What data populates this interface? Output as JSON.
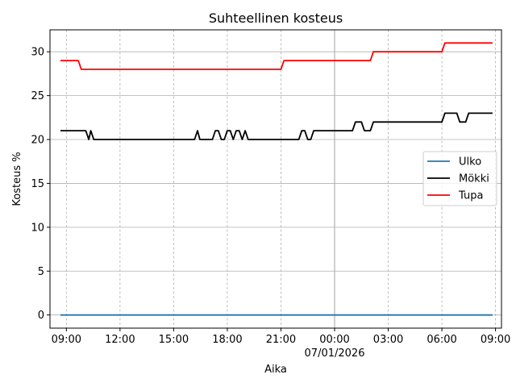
{
  "chart_data": {
    "type": "line",
    "title": "Suhteellinen kosteus",
    "xlabel": "Aika",
    "ylabel": "Kosteus %",
    "ylim": [
      -1.5,
      32.5
    ],
    "xlim": [
      "2026-01-06T08:05",
      "2026-01-07T09:20"
    ],
    "grid": true,
    "x_grid_style": "dashed",
    "legend_position": "center-right",
    "x_ticks": [
      {
        "t": "2026-01-06T09:00",
        "label": "09:00",
        "sublabel": ""
      },
      {
        "t": "2026-01-06T12:00",
        "label": "12:00",
        "sublabel": ""
      },
      {
        "t": "2026-01-06T15:00",
        "label": "15:00",
        "sublabel": ""
      },
      {
        "t": "2026-01-06T18:00",
        "label": "18:00",
        "sublabel": ""
      },
      {
        "t": "2026-01-06T21:00",
        "label": "21:00",
        "sublabel": ""
      },
      {
        "t": "2026-01-07T00:00",
        "label": "00:00",
        "sublabel": "07/01/2026"
      },
      {
        "t": "2026-01-07T03:00",
        "label": "03:00",
        "sublabel": ""
      },
      {
        "t": "2026-01-07T06:00",
        "label": "06:00",
        "sublabel": ""
      },
      {
        "t": "2026-01-07T09:00",
        "label": "09:00",
        "sublabel": ""
      }
    ],
    "y_ticks": [
      0,
      5,
      10,
      15,
      20,
      25,
      30
    ],
    "series": [
      {
        "name": "Ulko",
        "color": "#1f77b4",
        "points": [
          [
            "2026-01-06T08:40",
            0
          ],
          [
            "2026-01-07T08:50",
            0
          ]
        ]
      },
      {
        "name": "Mökki",
        "color": "#000000",
        "points": [
          [
            "2026-01-06T08:40",
            21
          ],
          [
            "2026-01-06T10:05",
            21
          ],
          [
            "2026-01-06T10:15",
            20
          ],
          [
            "2026-01-06T10:22",
            21
          ],
          [
            "2026-01-06T10:32",
            20
          ],
          [
            "2026-01-06T16:10",
            20
          ],
          [
            "2026-01-06T16:20",
            21
          ],
          [
            "2026-01-06T16:28",
            20
          ],
          [
            "2026-01-06T17:10",
            20
          ],
          [
            "2026-01-06T17:20",
            21
          ],
          [
            "2026-01-06T17:30",
            21
          ],
          [
            "2026-01-06T17:40",
            20
          ],
          [
            "2026-01-06T17:50",
            20
          ],
          [
            "2026-01-06T18:00",
            21
          ],
          [
            "2026-01-06T18:10",
            21
          ],
          [
            "2026-01-06T18:20",
            20
          ],
          [
            "2026-01-06T18:30",
            21
          ],
          [
            "2026-01-06T18:40",
            21
          ],
          [
            "2026-01-06T18:50",
            20
          ],
          [
            "2026-01-06T19:00",
            21
          ],
          [
            "2026-01-06T19:10",
            20
          ],
          [
            "2026-01-06T22:00",
            20
          ],
          [
            "2026-01-06T22:10",
            21
          ],
          [
            "2026-01-06T22:20",
            21
          ],
          [
            "2026-01-06T22:30",
            20
          ],
          [
            "2026-01-06T22:40",
            20
          ],
          [
            "2026-01-06T22:50",
            21
          ],
          [
            "2026-01-07T01:00",
            21
          ],
          [
            "2026-01-07T01:10",
            22
          ],
          [
            "2026-01-07T01:30",
            22
          ],
          [
            "2026-01-07T01:40",
            21
          ],
          [
            "2026-01-07T02:00",
            21
          ],
          [
            "2026-01-07T02:10",
            22
          ],
          [
            "2026-01-07T06:00",
            22
          ],
          [
            "2026-01-07T06:10",
            23
          ],
          [
            "2026-01-07T06:50",
            23
          ],
          [
            "2026-01-07T07:00",
            22
          ],
          [
            "2026-01-07T07:20",
            22
          ],
          [
            "2026-01-07T07:30",
            23
          ],
          [
            "2026-01-07T08:50",
            23
          ]
        ]
      },
      {
        "name": "Tupa",
        "color": "#ff0000",
        "points": [
          [
            "2026-01-06T08:40",
            29
          ],
          [
            "2026-01-06T09:40",
            29
          ],
          [
            "2026-01-06T09:50",
            28
          ],
          [
            "2026-01-06T21:00",
            28
          ],
          [
            "2026-01-06T21:10",
            29
          ],
          [
            "2026-01-07T02:00",
            29
          ],
          [
            "2026-01-07T02:10",
            30
          ],
          [
            "2026-01-07T06:00",
            30
          ],
          [
            "2026-01-07T06:10",
            31
          ],
          [
            "2026-01-07T08:50",
            31
          ]
        ]
      }
    ]
  }
}
